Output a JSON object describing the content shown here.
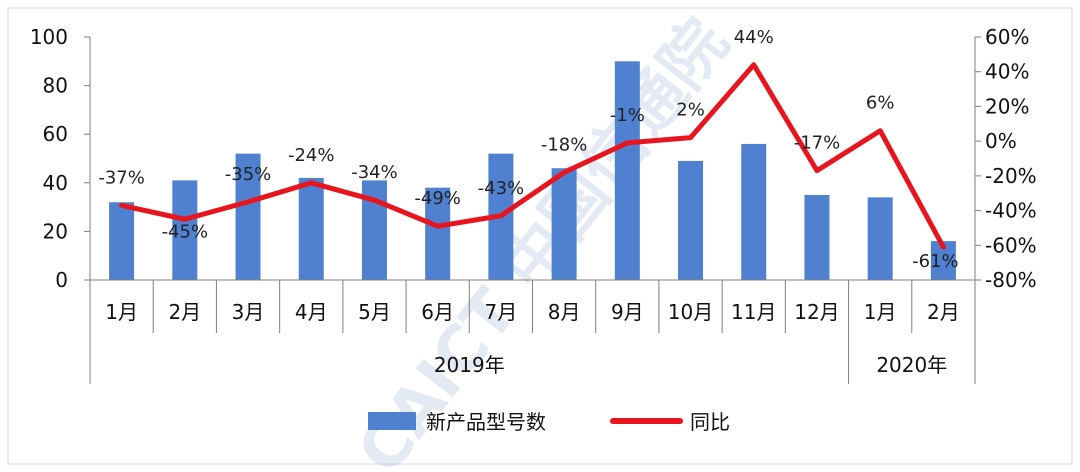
{
  "chart_data": {
    "type": "bar+line",
    "categories": [
      "1月",
      "2月",
      "3月",
      "4月",
      "5月",
      "6月",
      "7月",
      "8月",
      "9月",
      "10月",
      "11月",
      "12月",
      "1月",
      "2月"
    ],
    "year_groups": [
      {
        "label": "2019年",
        "start": 0,
        "end": 11
      },
      {
        "label": "2020年",
        "start": 12,
        "end": 13
      }
    ],
    "series": [
      {
        "name": "新产品型号数",
        "type": "bar",
        "axis": "left",
        "color": "#4f81d0",
        "values": [
          32,
          41,
          52,
          42,
          41,
          38,
          52,
          46,
          90,
          49,
          56,
          35,
          34,
          16
        ]
      },
      {
        "name": "同比",
        "type": "line",
        "axis": "right",
        "color": "#e8141e",
        "values": [
          -37,
          -45,
          -35,
          -24,
          -34,
          -49,
          -43,
          -18,
          -1,
          2,
          44,
          -17,
          6,
          -61
        ],
        "labels": [
          "-37%",
          "-45%",
          "-35%",
          "-24%",
          "-34%",
          "-49%",
          "-43%",
          "-18%",
          "-1%",
          "2%",
          "44%",
          "-17%",
          "6%",
          "-61%"
        ]
      }
    ],
    "y_left": {
      "min": 0,
      "max": 100,
      "ticks": [
        "0",
        "20",
        "40",
        "60",
        "80",
        "100"
      ]
    },
    "y_right": {
      "min": -80,
      "max": 60,
      "ticks": [
        "-80%",
        "-60%",
        "-40%",
        "-20%",
        "0%",
        "20%",
        "40%",
        "60%"
      ]
    },
    "legend_position": "bottom-center",
    "grid": false
  },
  "watermark": "CAICT 中国信通院"
}
